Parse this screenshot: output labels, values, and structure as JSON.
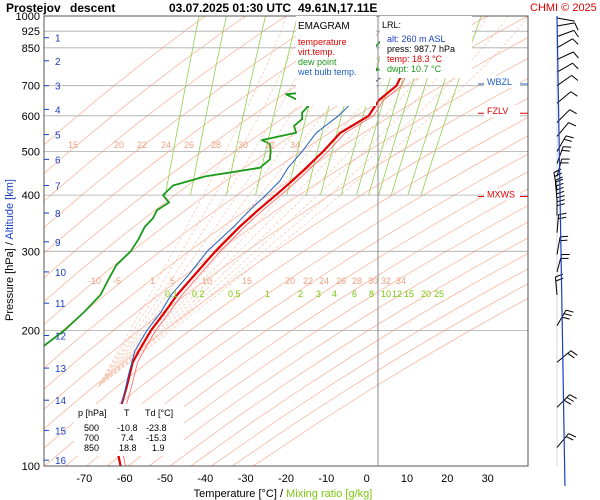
{
  "header": {
    "station": "Prostejov",
    "mode": "descent",
    "datetime": "03.07.2025 01:30 UTC",
    "coords": "49.61N,17.11E",
    "copyright": "CHMI © 2025"
  },
  "legend": {
    "title": "EMAGRAM",
    "items": [
      {
        "label": "temperature",
        "color": "#e00000"
      },
      {
        "label": "virt.temp.",
        "color": "#e00000"
      },
      {
        "label": "dew point",
        "color": "#1a9a1a"
      },
      {
        "label": "wet bulb temp.",
        "color": "#2060c0"
      }
    ]
  },
  "lrl": {
    "title": "LRL:",
    "lines": [
      {
        "text": "alt: 260 m ASL",
        "color": "#1a3fc4"
      },
      {
        "text": "press: 987.7 hPa",
        "color": "#000000"
      },
      {
        "text": "temp: 18.3 °C",
        "color": "#e00000"
      },
      {
        "text": "dwpt: 10.7 °C",
        "color": "#1a9a1a"
      }
    ]
  },
  "table": {
    "headers": [
      "p [hPa]",
      "T",
      "Td [°C]"
    ],
    "rows": [
      [
        "500",
        "-10.8",
        "-23.8"
      ],
      [
        "700",
        "7.4",
        "-15.3"
      ],
      [
        "850",
        "18.8",
        "1.9"
      ]
    ]
  },
  "levels": [
    {
      "label": "MXWS",
      "p": 397,
      "color": "#e00000"
    },
    {
      "label": "FZLV",
      "p": 608,
      "color": "#e00000"
    },
    {
      "label": "WBZL",
      "p": 706,
      "color": "#2060c0"
    }
  ],
  "chart_data": {
    "type": "line",
    "xlabel": "Temperature [°C]",
    "xlabel2": "Mixing ratio [g/kg]",
    "ylabel": "Pressure [hPa]",
    "ylabel2": "Altitude [km]",
    "xlim": [
      -80,
      40
    ],
    "ylim": [
      1000,
      100
    ],
    "y_log": true,
    "x_ticks": [
      -70,
      -60,
      -50,
      -40,
      -30,
      -20,
      -10,
      0,
      10,
      20,
      30
    ],
    "p_ticks": [
      1000,
      925,
      850,
      700,
      600,
      500,
      400,
      300,
      200,
      100
    ],
    "alt_ticks_km": [
      {
        "km": 1,
        "p": 895
      },
      {
        "km": 2,
        "p": 795
      },
      {
        "km": 3,
        "p": 700
      },
      {
        "km": 4,
        "p": 620
      },
      {
        "km": 5,
        "p": 545
      },
      {
        "km": 6,
        "p": 480
      },
      {
        "km": 7,
        "p": 420
      },
      {
        "km": 8,
        "p": 365
      },
      {
        "km": 9,
        "p": 315
      },
      {
        "km": 10,
        "p": 270
      },
      {
        "km": 11,
        "p": 230
      },
      {
        "km": 12,
        "p": 195
      },
      {
        "km": 13,
        "p": 165
      },
      {
        "km": 14,
        "p": 140
      },
      {
        "km": 15,
        "p": 120
      },
      {
        "km": 16,
        "p": 103
      }
    ],
    "dry_adiabat_labels_upper": [
      15,
      20,
      22,
      24,
      26,
      28,
      30,
      32,
      34
    ],
    "dry_adiabat_labels_lower": [
      -10,
      -5,
      1,
      5,
      10,
      15,
      20,
      22,
      24,
      26,
      28,
      30,
      32,
      34
    ],
    "mixing_ratio_labels": [
      "0.1",
      "0.2",
      "0.5",
      "1",
      "2",
      "3",
      "4",
      "6",
      "8",
      "10",
      "12",
      "15",
      "20",
      "25"
    ],
    "series": [
      {
        "name": "temperature",
        "color": "#e00000",
        "points": [
          [
            1000,
            19.5
          ],
          [
            990,
            18.3
          ],
          [
            960,
            22.5
          ],
          [
            925,
            23.5
          ],
          [
            900,
            21.5
          ],
          [
            850,
            18.8
          ],
          [
            800,
            13.0
          ],
          [
            750,
            9.0
          ],
          [
            700,
            7.4
          ],
          [
            650,
            3.0
          ],
          [
            600,
            0.5
          ],
          [
            550,
            -6.5
          ],
          [
            500,
            -10.8
          ],
          [
            460,
            -15.0
          ],
          [
            430,
            -18.5
          ],
          [
            400,
            -22.5
          ],
          [
            370,
            -27.0
          ],
          [
            340,
            -31.5
          ],
          [
            300,
            -37.5
          ],
          [
            270,
            -42.0
          ],
          [
            240,
            -47.0
          ],
          [
            220,
            -50.0
          ],
          [
            200,
            -53.5
          ],
          [
            180,
            -56.5
          ],
          [
            170,
            -58.0
          ],
          [
            150,
            -59.5
          ],
          [
            130,
            -61.5
          ],
          [
            115,
            -62.0
          ],
          [
            105,
            -61.5
          ],
          [
            100,
            -61.0
          ]
        ]
      },
      {
        "name": "dew point",
        "color": "#1a9a1a",
        "points": [
          [
            1000,
            10.5
          ],
          [
            990,
            10.7
          ],
          [
            960,
            9.0
          ],
          [
            925,
            6.5
          ],
          [
            900,
            4.5
          ],
          [
            870,
            3.0
          ],
          [
            850,
            1.9
          ],
          [
            800,
            2.0
          ],
          [
            780,
            -1.0
          ],
          [
            760,
            3.0
          ],
          [
            730,
            -5.0
          ],
          [
            700,
            -15.3
          ],
          [
            680,
            -12.5
          ],
          [
            670,
            -20.0
          ],
          [
            650,
            -17.0
          ],
          [
            630,
            -14.5
          ],
          [
            610,
            -16.0
          ],
          [
            590,
            -16.0
          ],
          [
            570,
            -18.0
          ],
          [
            550,
            -17.5
          ],
          [
            530,
            -26.0
          ],
          [
            520,
            -24.0
          ],
          [
            500,
            -23.8
          ],
          [
            480,
            -24.0
          ],
          [
            460,
            -26.5
          ],
          [
            440,
            -40.0
          ],
          [
            420,
            -48.0
          ],
          [
            400,
            -50.5
          ],
          [
            385,
            -49.0
          ],
          [
            370,
            -52.0
          ],
          [
            355,
            -53.0
          ],
          [
            340,
            -55.0
          ],
          [
            320,
            -56.5
          ],
          [
            300,
            -58.5
          ],
          [
            280,
            -62.0
          ],
          [
            260,
            -64.0
          ],
          [
            240,
            -66.0
          ],
          [
            220,
            -70.0
          ],
          [
            200,
            -75.0
          ],
          [
            185,
            -80.0
          ]
        ]
      },
      {
        "name": "wet bulb temp.",
        "color": "#2060c0",
        "points": [
          [
            1000,
            13.0
          ],
          [
            990,
            13.5
          ],
          [
            960,
            13.5
          ],
          [
            925,
            13.5
          ],
          [
            900,
            12.0
          ],
          [
            850,
            9.0
          ],
          [
            800,
            7.5
          ],
          [
            750,
            5.0
          ],
          [
            700,
            1.0
          ],
          [
            650,
            -3.0
          ],
          [
            600,
            -7.0
          ],
          [
            550,
            -12.5
          ],
          [
            500,
            -16.0
          ],
          [
            460,
            -19.5
          ],
          [
            430,
            -21.5
          ],
          [
            400,
            -25.0
          ],
          [
            370,
            -29.0
          ],
          [
            340,
            -33.0
          ],
          [
            300,
            -39.5
          ],
          [
            270,
            -43.5
          ],
          [
            240,
            -48.5
          ],
          [
            220,
            -51.0
          ],
          [
            200,
            -54.5
          ],
          [
            180,
            -57.5
          ],
          [
            160,
            -59.0
          ],
          [
            140,
            -60.5
          ],
          [
            130,
            -61.5
          ]
        ]
      }
    ]
  }
}
